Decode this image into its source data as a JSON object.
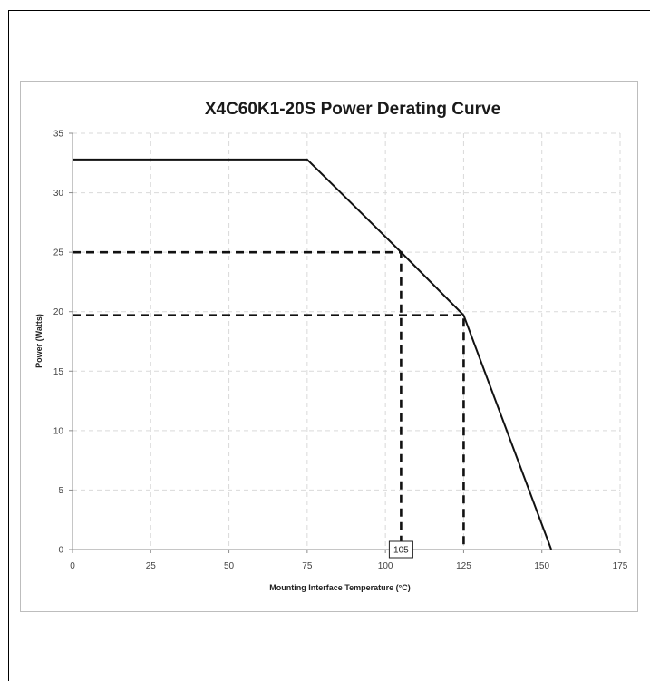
{
  "chart_data": {
    "type": "line",
    "title": "X4C60K1-20S Power Derating Curve",
    "xlabel": "Mounting Interface Temperature (°C)",
    "ylabel": "Power (Watts)",
    "xlim": [
      0,
      175
    ],
    "ylim": [
      0,
      35
    ],
    "xticks": [
      0,
      25,
      50,
      75,
      100,
      125,
      150,
      175
    ],
    "yticks": [
      0,
      5,
      10,
      15,
      20,
      25,
      30,
      35
    ],
    "grid": true,
    "series": [
      {
        "x": [
          0,
          75,
          105,
          125,
          153
        ],
        "y": [
          32.8,
          32.8,
          25,
          19.7,
          0
        ],
        "color": "#111111"
      }
    ],
    "guides": [
      {
        "x": [
          0,
          105,
          105
        ],
        "y": [
          25,
          25,
          0
        ]
      },
      {
        "x": [
          0,
          125,
          125
        ],
        "y": [
          19.7,
          19.7,
          0
        ]
      }
    ],
    "annotations": [
      {
        "text": "105",
        "x": 105,
        "y": 0
      }
    ]
  }
}
